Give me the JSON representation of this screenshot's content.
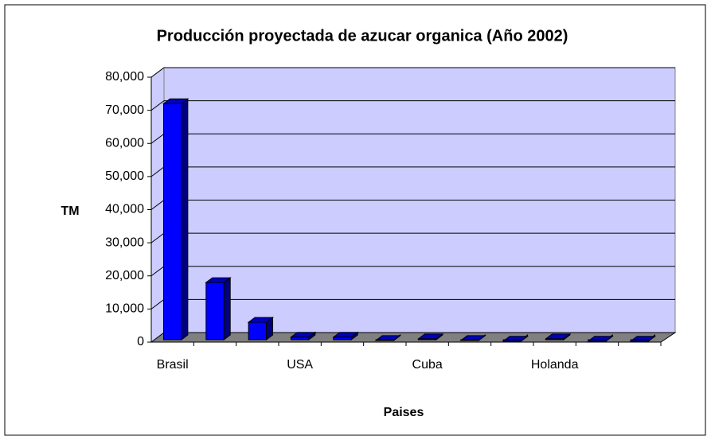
{
  "chart_data": {
    "type": "bar3d",
    "title": "Producción proyectada de azucar organica (Año 2002)",
    "x_label": "Paises",
    "y_label": "TM",
    "categories": [
      "Brasil",
      null,
      null,
      "USA",
      null,
      null,
      "Cuba",
      null,
      null,
      "Holanda",
      null,
      null
    ],
    "values": [
      72000,
      18000,
      6000,
      1500,
      1500,
      500,
      1000,
      500,
      300,
      1000,
      300,
      300
    ],
    "color": "#0000ff",
    "ylim": [
      0,
      80000
    ],
    "yticks": [
      0,
      {
        "value": 10000,
        "label": "10,000"
      },
      {
        "value": 20000,
        "label": "20,000"
      },
      {
        "value": 30000,
        "label": "30,000"
      },
      {
        "value": 40000,
        "label": "40,000"
      },
      {
        "value": 50000,
        "label": "50,000"
      },
      {
        "value": 60000,
        "label": "60,000"
      },
      {
        "value": 70000,
        "label": "70,000"
      },
      {
        "value": 80000,
        "label": "80,000"
      }
    ],
    "grid": true
  }
}
